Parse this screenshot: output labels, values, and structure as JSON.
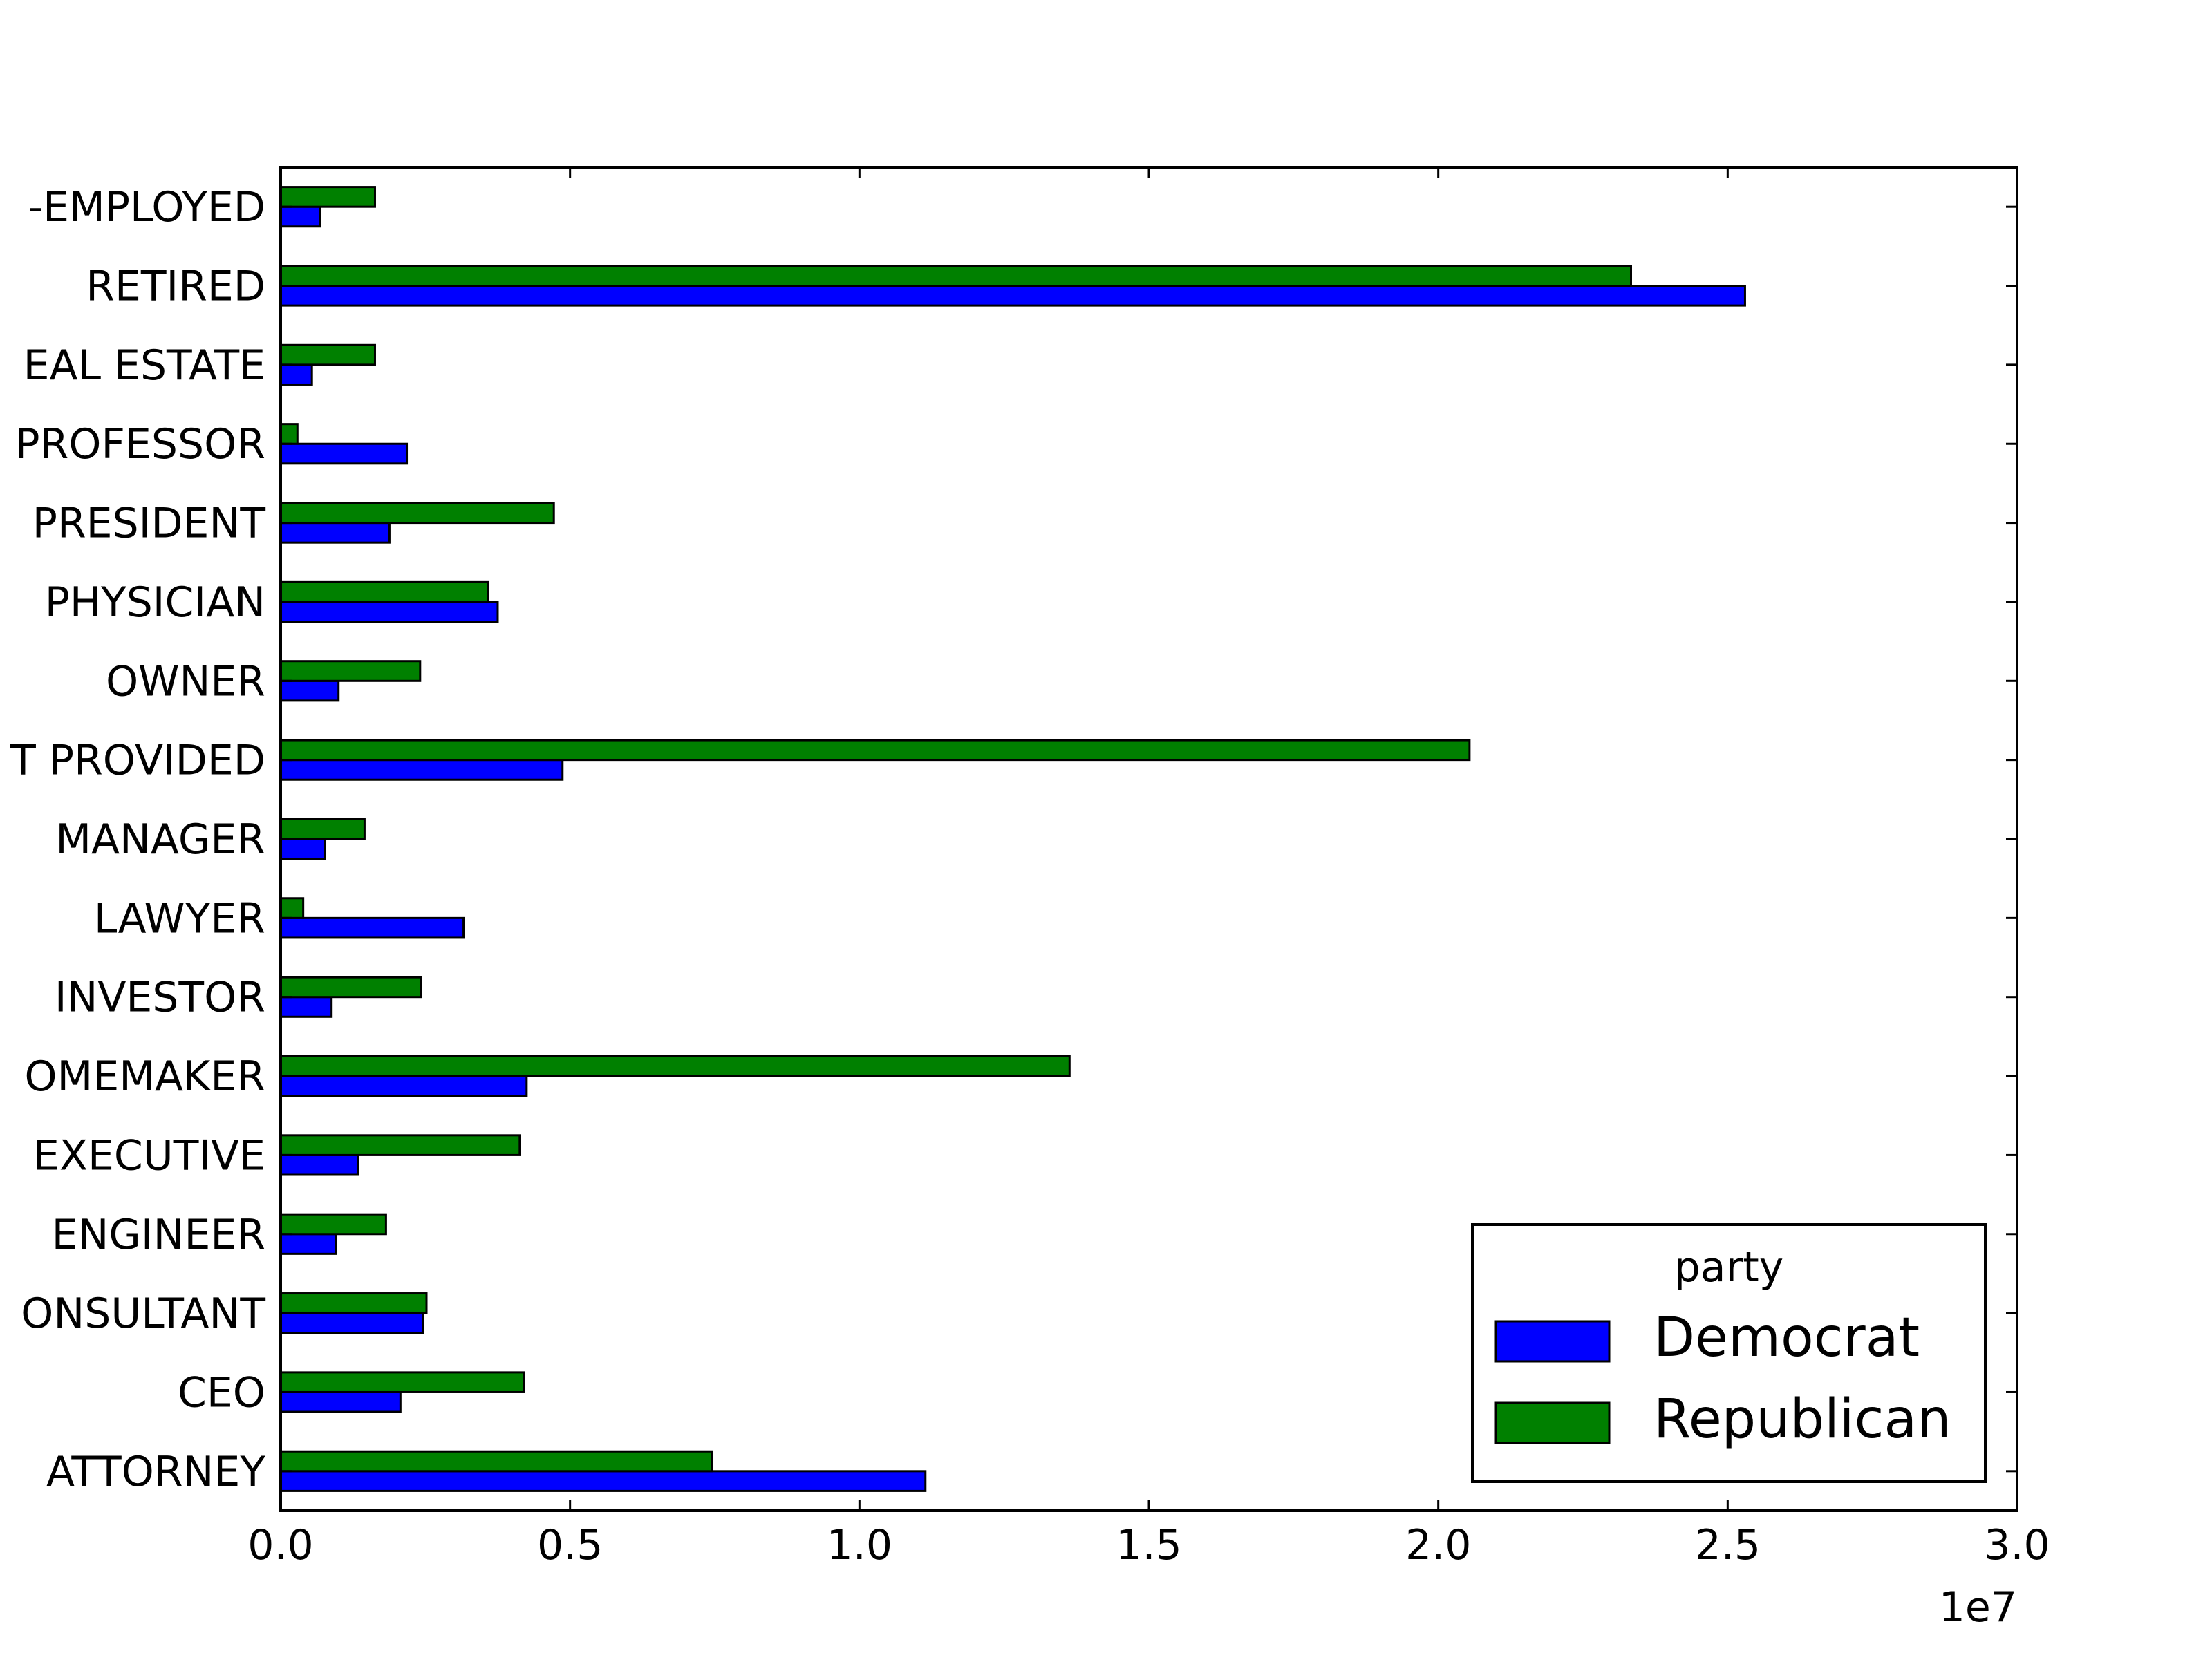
{
  "chart_data": {
    "type": "bar",
    "orientation": "horizontal",
    "categories": [
      "ATTORNEY",
      "CEO",
      "CONSULTANT",
      "ENGINEER",
      "EXECUTIVE",
      "HOMEMAKER",
      "INVESTOR",
      "LAWYER",
      "MANAGER",
      "NOT PROVIDED",
      "OWNER",
      "PHYSICIAN",
      "PRESIDENT",
      "PROFESSOR",
      "REAL ESTATE",
      "RETIRED",
      "SELF-EMPLOYED"
    ],
    "category_labels_visible": [
      "ATTORNEY",
      "CEO",
      "ONSULTANT",
      "ENGINEER",
      "EXECUTIVE",
      "OMEMAKER",
      "INVESTOR",
      "LAWYER",
      "MANAGER",
      "T PROVIDED",
      "OWNER",
      "PHYSICIAN",
      "PRESIDENT",
      "PROFESSOR",
      "EAL ESTATE",
      "RETIRED",
      "-EMPLOYED"
    ],
    "series": [
      {
        "name": "Democrat",
        "color": "#0000ff",
        "values": [
          11140000,
          2070000,
          2460000,
          950000,
          1340000,
          4250000,
          880000,
          3160000,
          760000,
          4870000,
          1000000,
          3750000,
          1880000,
          2180000,
          540000,
          25300000,
          680000
        ]
      },
      {
        "name": "Republican",
        "color": "#008000",
        "values": [
          7450000,
          4200000,
          2520000,
          1820000,
          4130000,
          13630000,
          2430000,
          390000,
          1450000,
          20540000,
          2410000,
          3580000,
          4720000,
          290000,
          1630000,
          23330000,
          1630000
        ]
      }
    ],
    "xlim": [
      0,
      30000000
    ],
    "xticks": [
      0,
      5000000,
      10000000,
      15000000,
      20000000,
      25000000,
      30000000
    ],
    "xtick_labels": [
      "0.0",
      "0.5",
      "1.0",
      "1.5",
      "2.0",
      "2.5",
      "3.0"
    ],
    "x_offset_label": "1e7",
    "title": "",
    "xlabel": "",
    "ylabel": "",
    "legend": {
      "title": "party",
      "placement": "lower-right",
      "entries": [
        "Democrat",
        "Republican"
      ]
    },
    "grid": false
  }
}
